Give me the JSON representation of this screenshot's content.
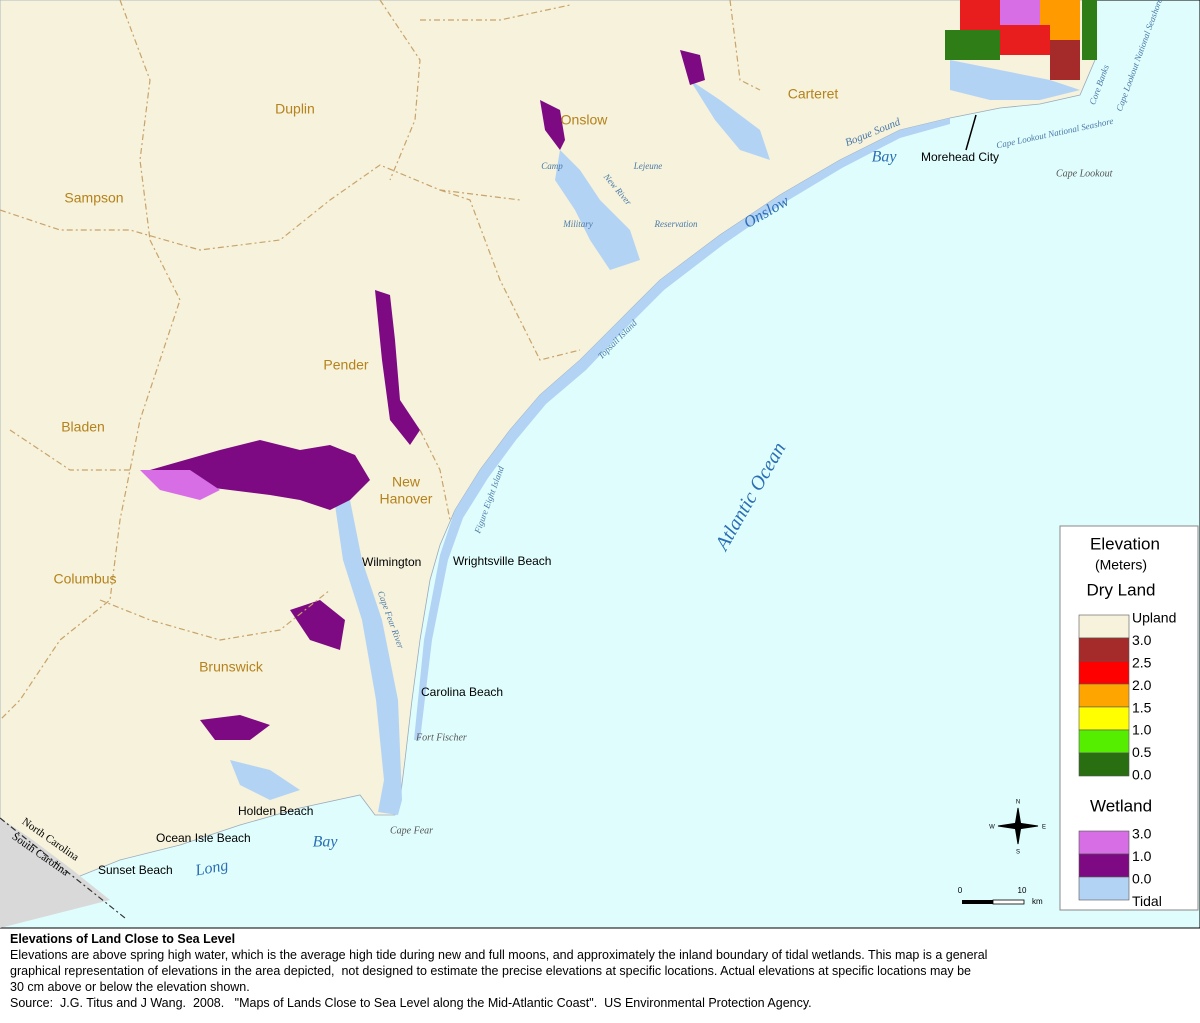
{
  "map": {
    "counties": [
      "Duplin",
      "Sampson",
      "Onslow",
      "Carteret",
      "Pender",
      "Bladen",
      [
        "New",
        "Hanover"
      ],
      "Columbus",
      "Brunswick"
    ],
    "places": [
      "Morehead City",
      "Wilmington",
      "Wrightsville Beach",
      "Carolina Beach",
      "Holden Beach",
      "Ocean Isle Beach",
      "Sunset Beach"
    ],
    "features": [
      "Cape Lookout",
      "Cape Fear",
      "Fort Fischer"
    ],
    "water": [
      "Onslow",
      "Bay",
      "Atlantic  Ocean",
      "Long",
      "Bay"
    ],
    "small_labels": [
      "Bogue Sound",
      "Camp",
      "Lejeune",
      "New River",
      "Military",
      "Reservation",
      "Topsail Island",
      "Figure Eight Island",
      "Cape Lookout National Seashore",
      "Core Banks",
      "Cape Lookout National Seashore",
      "Cape Fear River"
    ],
    "states": [
      "North Carolina",
      "South Carolina"
    ],
    "compass": [
      "N",
      "E",
      "S",
      "W"
    ],
    "scale": [
      "0",
      "10",
      "km"
    ]
  },
  "legend": {
    "title": "Elevation",
    "units": "(Meters)",
    "groups": [
      {
        "title": "Dry Land",
        "colors": [
          "#f6f2dc",
          "#a52a2a",
          "#ff0000",
          "#ffa500",
          "#ffff00",
          "#55ee00",
          "#2a6e12"
        ],
        "labels": [
          "Upland",
          "3.0",
          "2.5",
          "2.0",
          "1.5",
          "1.0",
          "0.5",
          "0.0"
        ]
      },
      {
        "title": "Wetland",
        "colors": [
          "#d86ee6",
          "#7d0a82",
          "#b3d3f5"
        ],
        "labels": [
          "3.0",
          "1.0",
          "0.0",
          "Tidal"
        ]
      }
    ]
  },
  "caption": {
    "title": "Elevations of Land Close to Sea Level",
    "lines": [
      "Elevations are above spring high water, which is the average high tide during new and full moons, and approximately the inland boundary of tidal wetlands. This map is a general",
      "graphical representation of elevations in the area depicted,  not designed to estimate the precise elevations at specific locations. Actual elevations at specific locations may be",
      "30 cm above or below the elevation shown."
    ],
    "source": "Source:  J.G. Titus and J Wang.  2008.   \"Maps of Lands Close to Sea Level along the Mid-Atlantic Coast\".  US Environmental Protection Agency."
  }
}
